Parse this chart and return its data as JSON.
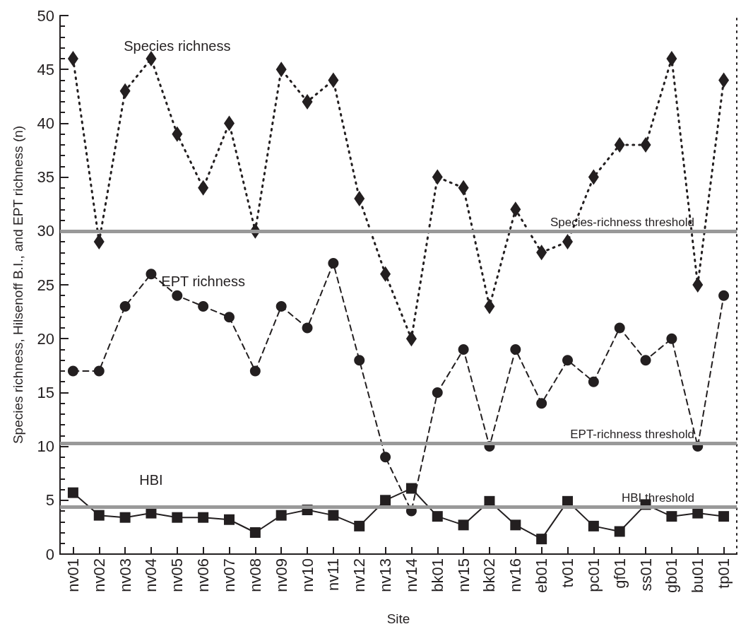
{
  "chart_data": {
    "type": "line",
    "xlabel": "Site",
    "ylabel": "Species richness, Hilsenoff B.I., and EPT richness (n)",
    "categories": [
      "nv01",
      "nv02",
      "nv03",
      "nv04",
      "nv05",
      "nv06",
      "nv07",
      "nv08",
      "nv09",
      "nv10",
      "nv11",
      "nv12",
      "nv13",
      "nv14",
      "bk01",
      "nv15",
      "bk02",
      "nv16",
      "eb01",
      "tv01",
      "pc01",
      "gf01",
      "ss01",
      "gb01",
      "bu01",
      "tp01"
    ],
    "series": [
      {
        "name": "Species richness",
        "color": "#231f20",
        "marker": "diamond",
        "line_style": "dotted",
        "values": [
          46,
          29,
          43,
          46,
          39,
          34,
          40,
          30,
          45,
          42,
          44,
          33,
          26,
          20,
          35,
          34,
          23,
          32,
          28,
          29,
          35,
          38,
          38,
          46,
          25,
          44
        ]
      },
      {
        "name": "EPT richness",
        "color": "#231f20",
        "marker": "circle",
        "line_style": "dashed",
        "values": [
          17,
          17,
          23,
          26,
          24,
          23,
          22,
          17,
          23,
          21,
          27,
          18,
          9,
          4,
          15,
          19,
          10,
          19,
          14,
          18,
          16,
          21,
          18,
          20,
          10,
          24
        ]
      },
      {
        "name": "HBI",
        "color": "#231f20",
        "marker": "square",
        "line_style": "solid",
        "values": [
          5.7,
          3.6,
          3.4,
          3.8,
          3.4,
          3.4,
          3.2,
          2.0,
          3.6,
          4.1,
          3.6,
          2.6,
          5.0,
          6.1,
          3.5,
          2.7,
          4.9,
          2.7,
          1.4,
          4.9,
          2.6,
          2.1,
          4.6,
          3.5,
          3.8,
          3.5
        ]
      }
    ],
    "ylim": [
      0,
      50
    ],
    "yticks": [
      0,
      5,
      10,
      15,
      20,
      25,
      30,
      35,
      40,
      45,
      50
    ],
    "ref_lines": [
      {
        "axis": "y",
        "value": 30,
        "label": "Species-richness threshold",
        "color": "#999999"
      },
      {
        "axis": "y",
        "value": 10.3,
        "label": "EPT-richness threshold",
        "color": "#999999"
      },
      {
        "axis": "y",
        "value": 4.4,
        "label": "HBI threshold",
        "color": "#999999"
      }
    ]
  }
}
